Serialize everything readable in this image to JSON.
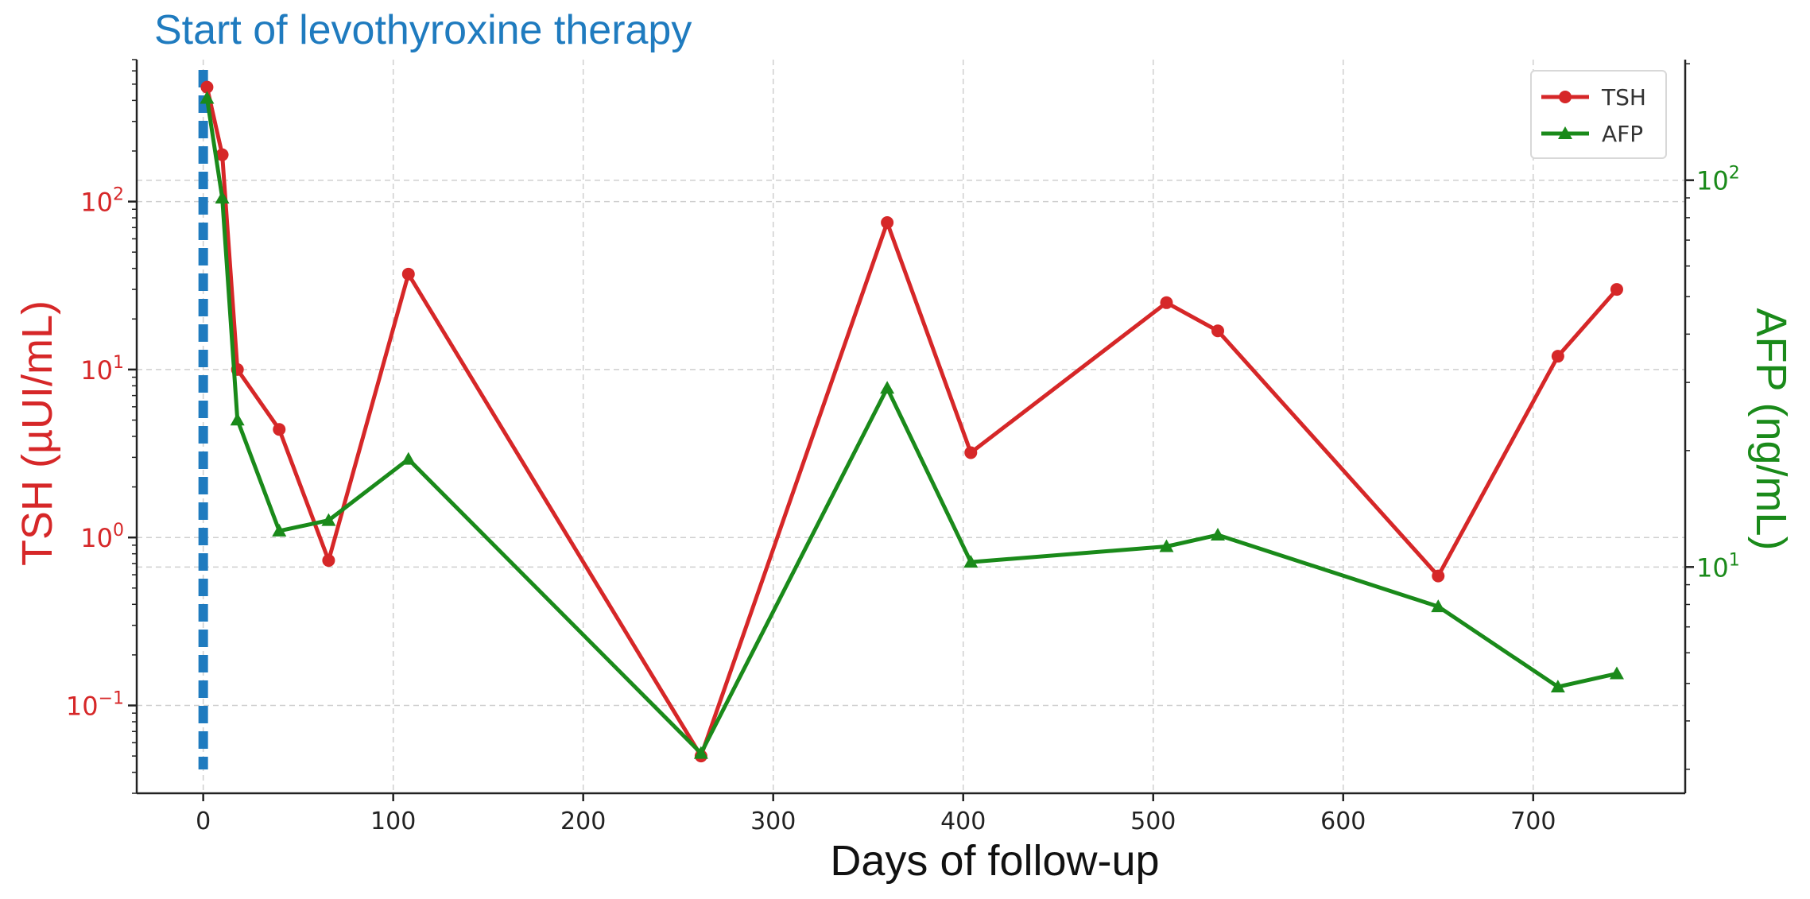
{
  "chart_data": {
    "type": "line",
    "annotation": "Start of levothyroxine therapy",
    "xlabel": "Days of follow-up",
    "ylabel_left": "TSH (µUI/mL)",
    "ylabel_right": "AFP (ng/mL)",
    "xlim": [
      -35,
      780
    ],
    "x_ticks": [
      0,
      100,
      200,
      300,
      400,
      500,
      600,
      700
    ],
    "y_left_scale": "log",
    "y_left_lim": [
      0.03,
      700
    ],
    "y_left_ticks": [
      {
        "value": 0.1,
        "label": "10",
        "exp": "−1"
      },
      {
        "value": 1,
        "label": "10",
        "exp": "0"
      },
      {
        "value": 10,
        "label": "10",
        "exp": "1"
      },
      {
        "value": 100,
        "label": "10",
        "exp": "2"
      }
    ],
    "y_right_scale": "log",
    "y_right_lim": [
      2.6,
      205
    ],
    "y_right_ticks": [
      {
        "value": 10,
        "label": "10",
        "exp": "1"
      },
      {
        "value": 100,
        "label": "10",
        "exp": "2"
      }
    ],
    "grid": true,
    "legend_position": "top-right",
    "therapy_start_day": 0,
    "series": [
      {
        "name": "TSH",
        "axis": "left",
        "color": "#d62728",
        "marker": "circle",
        "x": [
          2,
          10,
          18,
          40,
          66,
          108,
          262,
          360,
          404,
          507,
          534,
          650,
          713,
          744
        ],
        "y": [
          480,
          190,
          10,
          4.4,
          0.73,
          37,
          0.05,
          75,
          3.2,
          25,
          17,
          0.59,
          12,
          30
        ]
      },
      {
        "name": "AFP",
        "axis": "right",
        "color": "#1a8a1a",
        "marker": "triangle",
        "x": [
          2,
          10,
          18,
          40,
          66,
          108,
          262,
          360,
          404,
          507,
          534,
          650,
          713,
          744
        ],
        "y": [
          163,
          90,
          24,
          12.4,
          13.2,
          19,
          3.3,
          29,
          10.3,
          11.3,
          12.1,
          7.9,
          4.9,
          5.3
        ]
      }
    ]
  }
}
